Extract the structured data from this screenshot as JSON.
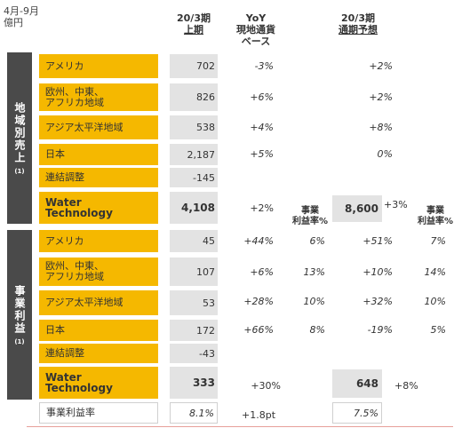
{
  "unit_label": [
    "4月-9月",
    "億円"
  ],
  "headers": {
    "h1_line1": "20/3期",
    "h1_line2": "上期",
    "h2_line1": "YoY",
    "h2_line2": "現地通貨",
    "h2_line3": "ベース",
    "h3_line1": "20/3期",
    "h3_line2": "通期予想"
  },
  "side_labels": {
    "sales": "地域別売上",
    "sales_note": "(1)",
    "profit": "事業利益",
    "profit_note": "(1)"
  },
  "op_margin_label": "事業\n利益率%",
  "sales_rows": [
    {
      "label": "アメリカ",
      "h1": "702",
      "yoy": "-3%",
      "fy_yoy": "+2%"
    },
    {
      "label": "欧州、中東、\nアフリカ地域",
      "h1": "826",
      "yoy": "+6%",
      "fy_yoy": "+2%"
    },
    {
      "label": "アジア太平洋地域",
      "h1": "538",
      "yoy": "+4%",
      "fy_yoy": "+8%"
    },
    {
      "label": "日本",
      "h1": "2,187",
      "yoy": "+5%",
      "fy_yoy": "0%"
    },
    {
      "label": "連結調整",
      "h1": "-145"
    }
  ],
  "sales_total": {
    "label": "Water\nTechnology",
    "h1": "4,108",
    "yoy": "+2%",
    "fy": "8,600",
    "fy_yoy": "+3%"
  },
  "profit_rows": [
    {
      "label": "アメリカ",
      "h1": "45",
      "yoy": "+44%",
      "margin": "6%",
      "fy_yoy": "+51%",
      "fy_margin": "7%"
    },
    {
      "label": "欧州、中東、\nアフリカ地域",
      "h1": "107",
      "yoy": "+6%",
      "margin": "13%",
      "fy_yoy": "+10%",
      "fy_margin": "14%"
    },
    {
      "label": "アジア太平洋地域",
      "h1": "53",
      "yoy": "+28%",
      "margin": "10%",
      "fy_yoy": "+32%",
      "fy_margin": "10%"
    },
    {
      "label": "日本",
      "h1": "172",
      "yoy": "+66%",
      "margin": "8%",
      "fy_yoy": "-19%",
      "fy_margin": "5%"
    },
    {
      "label": "連結調整",
      "h1": "-43"
    }
  ],
  "profit_total": {
    "label": "Water\nTechnology",
    "h1": "333",
    "yoy": "+30%",
    "fy": "648",
    "fy_yoy": "+8%"
  },
  "margin_row": {
    "label": "事業利益率",
    "h1": "8.1%",
    "yoy": "+1.8pt",
    "fy": "7.5%"
  },
  "colors": {
    "accent": "#f5b800",
    "side": "#4a4a4a",
    "value_bg": "#e3e3e3"
  }
}
